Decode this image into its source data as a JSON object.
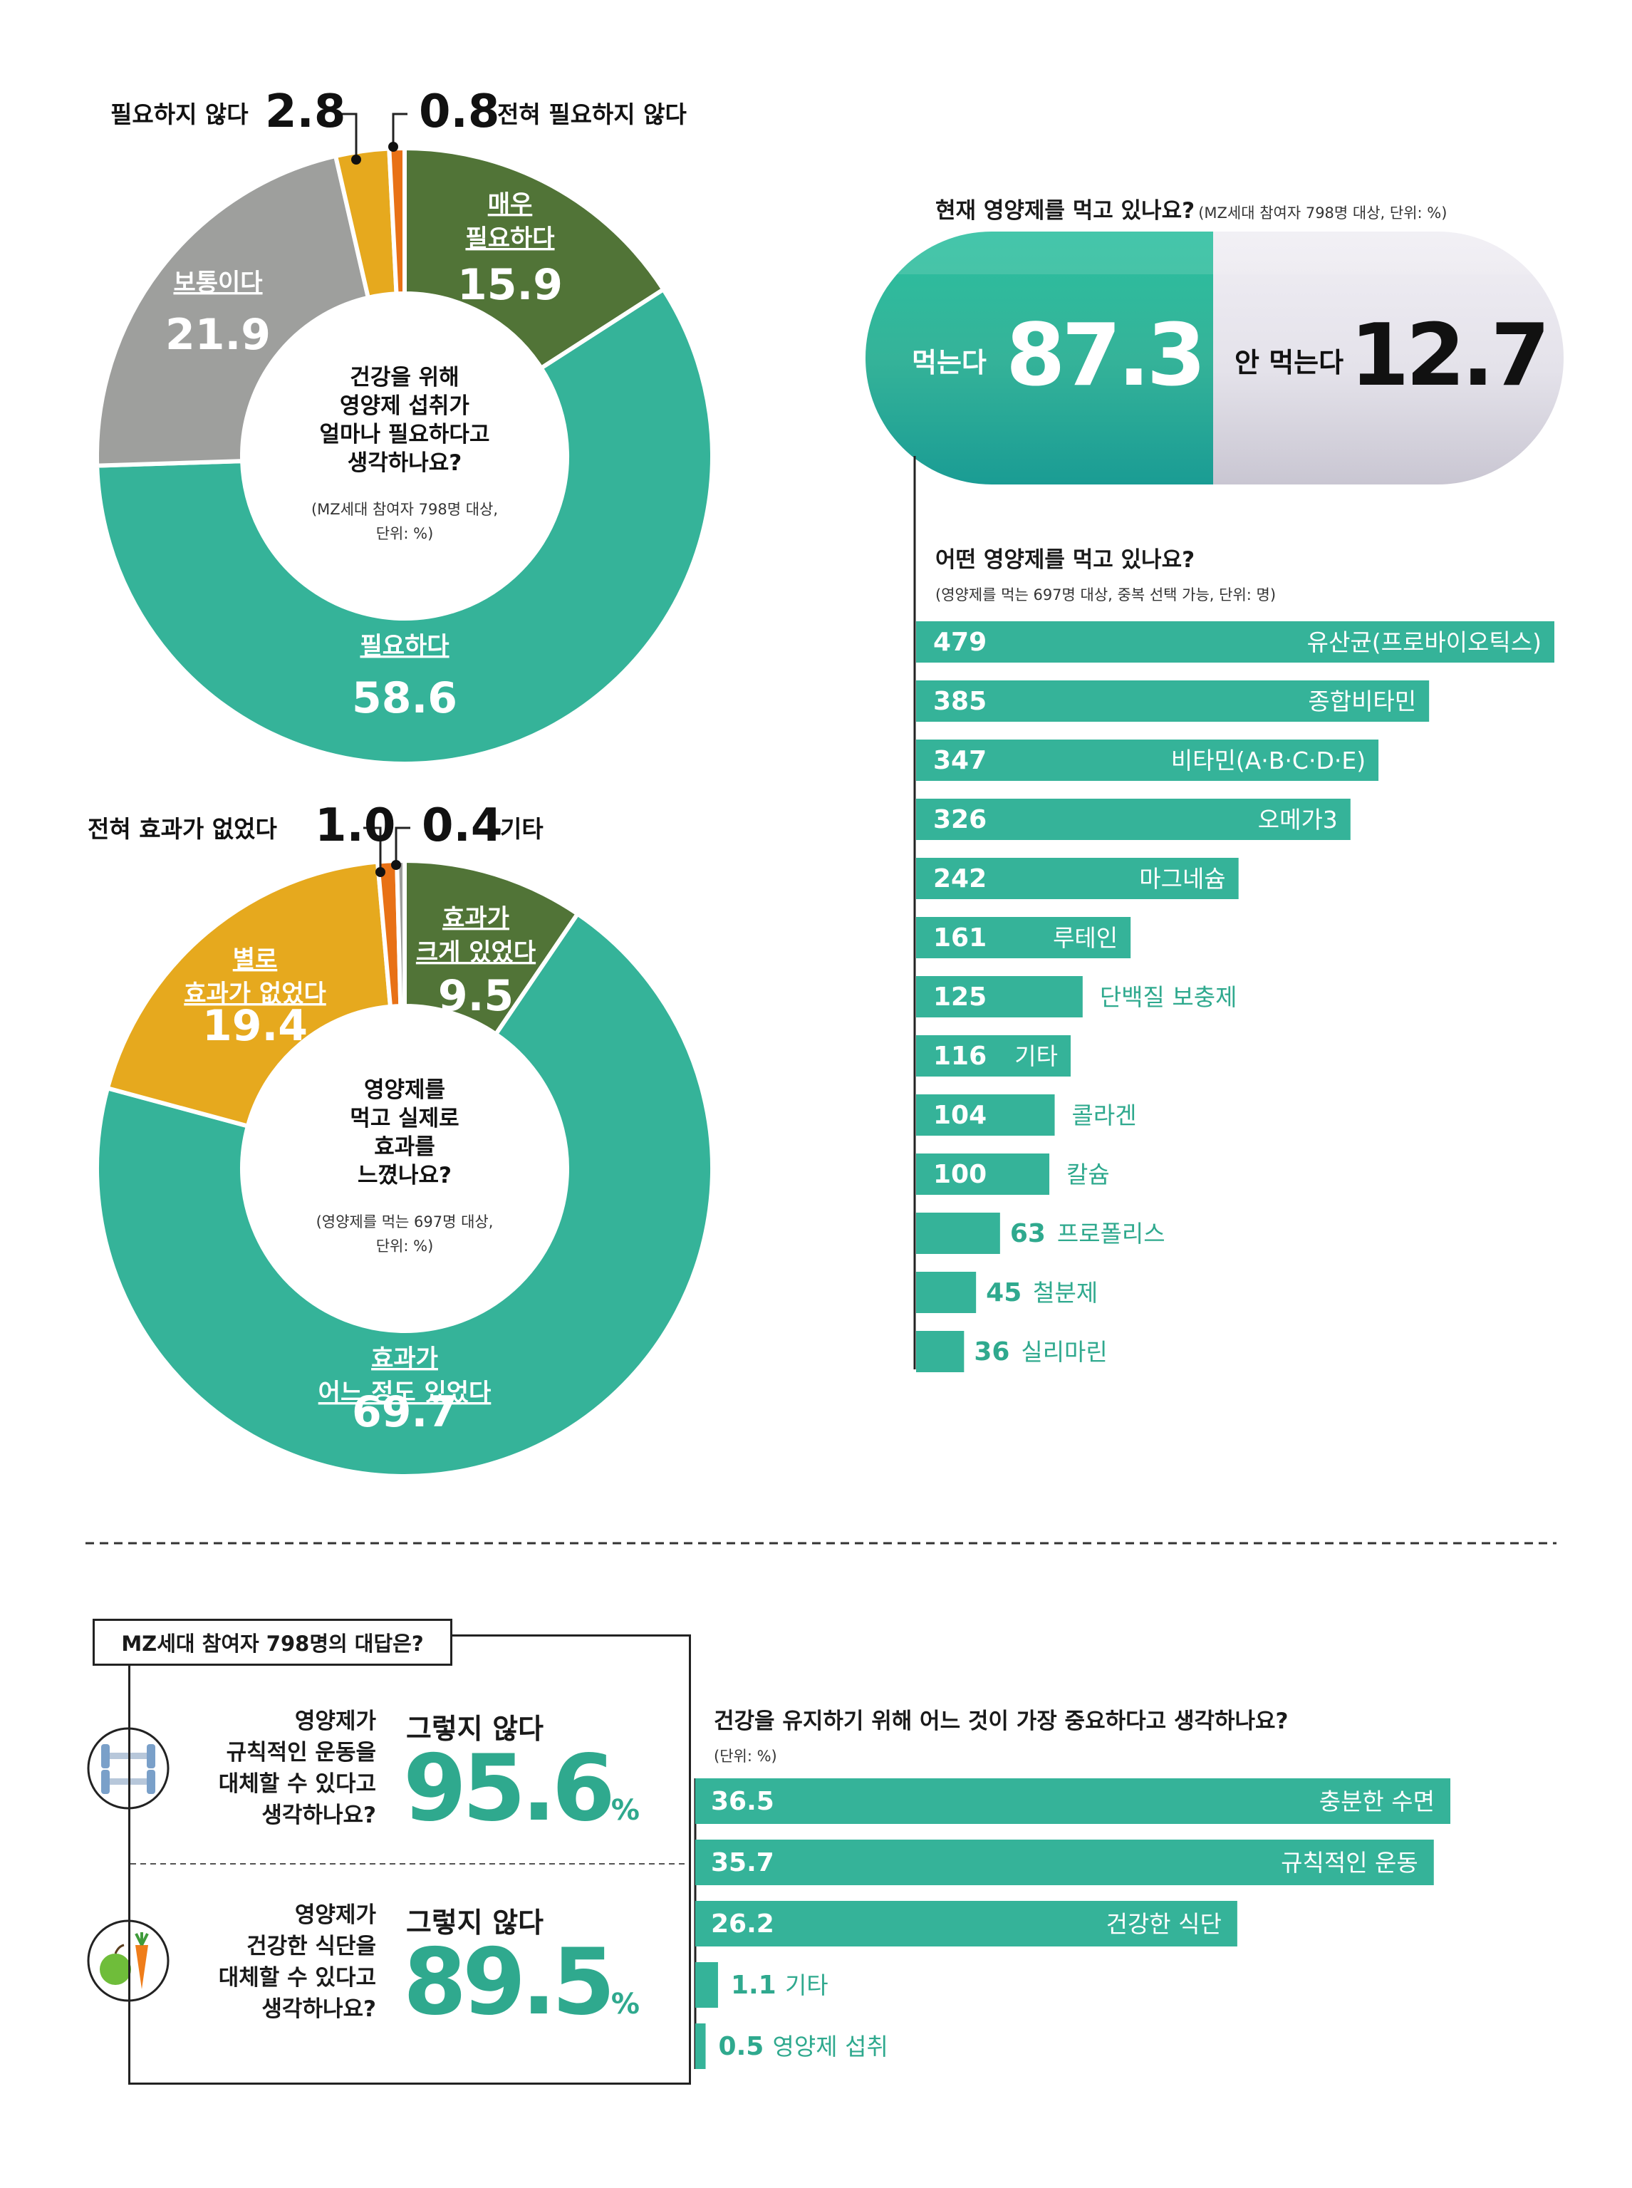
{
  "chart_data": [
    {
      "type": "pie",
      "title": "건강을 위해\n영양제 섭취가\n얼마나 필요하다고\n생각하나요?",
      "subtitle": "(MZ세대 참여자 798명 대상,\n단위: %)",
      "slices": [
        {
          "label": "매우\n필요하다",
          "value": 15.9,
          "color": "#517437"
        },
        {
          "label": "필요하다",
          "value": 58.6,
          "color": "#35b399"
        },
        {
          "label": "보통이다",
          "value": 21.9,
          "color": "#9e9f9d"
        },
        {
          "label": "필요하지 않다",
          "value": 2.8,
          "color": "#e6a91e"
        },
        {
          "label": "전혀 필요하지 않다",
          "value": 0.8,
          "color": "#e87116"
        }
      ]
    },
    {
      "type": "pie",
      "title": "영양제를\n먹고 실제로\n효과를\n느꼈나요?",
      "subtitle": "(영양제를 먹는 697명 대상,\n단위: %)",
      "slices": [
        {
          "label": "효과가\n크게 있었다",
          "value": 9.5,
          "color": "#517437"
        },
        {
          "label": "효과가\n어느 정도 있었다",
          "value": 69.7,
          "color": "#35b399"
        },
        {
          "label": "별로\n효과가 없었다",
          "value": 19.4,
          "color": "#e6a91e"
        },
        {
          "label": "전혀 효과가 없었다",
          "value": 1.0,
          "color": "#e87116"
        },
        {
          "label": "기타",
          "value": 0.4,
          "color": "#9e9f9d"
        }
      ]
    },
    {
      "type": "bar",
      "title": "현재 영양제를 먹고 있나요?",
      "subtitle": "(MZ세대 참여자 798명 대상, 단위: %)",
      "categories": [
        "먹는다",
        "안 먹는다"
      ],
      "values": [
        87.3,
        12.7
      ]
    },
    {
      "type": "bar",
      "title": "어떤 영양제를 먹고 있나요?",
      "subtitle": "(영양제를 먹는 697명 대상, 중복 선택 가능, 단위: 명)",
      "categories": [
        "유산균(프로바이오틱스)",
        "종합비타민",
        "비타민(A·B·C·D·E)",
        "오메가3",
        "마그네슘",
        "루테인",
        "단백질 보충제",
        "기타",
        "콜라겐",
        "칼슘",
        "프로폴리스",
        "철분제",
        "실리마린"
      ],
      "values": [
        479,
        385,
        347,
        326,
        242,
        161,
        125,
        116,
        104,
        100,
        63,
        45,
        36
      ]
    },
    {
      "type": "bar",
      "title": "건강을 유지하기 위해 어느 것이 가장 중요하다고 생각하나요?",
      "subtitle": "(단위: %)",
      "categories": [
        "충분한 수면",
        "규칙적인 운동",
        "건강한 식단",
        "기타",
        "영양제 섭취"
      ],
      "values": [
        36.5,
        35.7,
        26.2,
        1.1,
        0.5
      ]
    }
  ],
  "box": {
    "header": "MZ세대 참여자 798명의 대답은?",
    "items": [
      {
        "question": "영양제가\n규칙적인 운동을\n대체할 수 있다고\n생각하나요?",
        "answer": "그렇지 않다",
        "value": "95.6",
        "unit": "%",
        "icon": "dumbbell-icon"
      },
      {
        "question": "영양제가\n건강한 식단을\n대체할 수 있다고\n생각하나요?",
        "answer": "그렇지 않다",
        "value": "89.5",
        "unit": "%",
        "icon": "apple-carrot-icon"
      }
    ]
  },
  "colors": {
    "teal": "#35b399",
    "dark_teal": "#1fa995",
    "olive": "#517437",
    "gray": "#9e9f9d",
    "mustard": "#e6a91e",
    "orange": "#e87116",
    "pill_gray": "#e3e0ea"
  }
}
